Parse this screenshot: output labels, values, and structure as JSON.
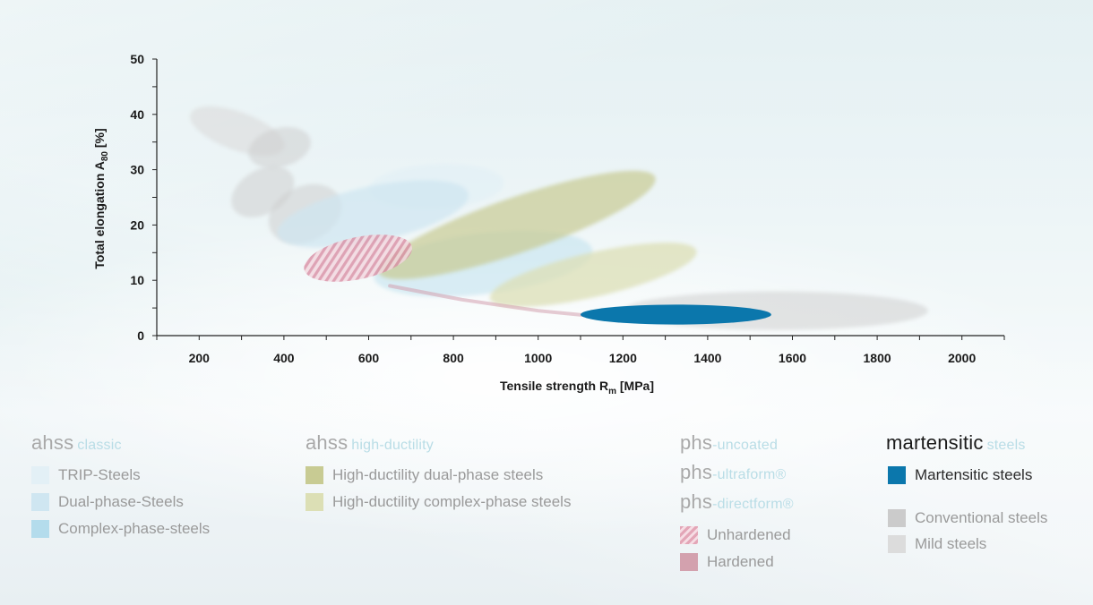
{
  "colors": {
    "trip": "#e3f0f6",
    "dual_phase": "#cfe6f1",
    "complex_phase": "#b4dcec",
    "hd_dual_phase": "#c8cb93",
    "hd_complex_phase": "#dcdfb5",
    "unhardened": "#e3a6b7",
    "hardened": "#d3a1ae",
    "martensitic": "#0b77ac",
    "conventional": "#cbcbcb",
    "mild": "#dcdcdc",
    "axis": "#222222",
    "heading_sub": "#b9dde6"
  },
  "chart_data": {
    "type": "scatter",
    "xlabel": "Tensile strength R",
    "xlabel_sub": "m",
    "xlabel_unit": " [MPa]",
    "ylabel": "Total elongation A",
    "ylabel_sub": "80",
    "ylabel_unit": " [%]",
    "xlim": [
      100,
      2100
    ],
    "ylim": [
      0,
      50
    ],
    "x_ticks": [
      200,
      400,
      600,
      800,
      1000,
      1200,
      1400,
      1600,
      1800,
      2000
    ],
    "y_ticks": [
      0,
      10,
      20,
      30,
      40,
      50
    ],
    "series": [
      {
        "name": "Mild steels",
        "color": "#dadada",
        "opacity": 0.6,
        "regions": [
          {
            "x": 290,
            "y": 37,
            "rx": 45,
            "ry": 9,
            "angle": -70
          }
        ]
      },
      {
        "name": "Conventional steels",
        "color": "#cbcbcb",
        "opacity": 0.5,
        "regions": [
          {
            "x": 390,
            "y": 34,
            "rx": 75,
            "ry": 3.5,
            "angle": -15
          },
          {
            "x": 350,
            "y": 26,
            "rx": 80,
            "ry": 4,
            "angle": -30
          },
          {
            "x": 450,
            "y": 22,
            "rx": 90,
            "ry": 5,
            "angle": -25
          },
          {
            "x": 1560,
            "y": 4.5,
            "rx": 360,
            "ry": 3.5,
            "angle": 0
          }
        ]
      },
      {
        "name": "TRIP-Steels",
        "color": "#e3f0f6",
        "opacity": 0.75,
        "regions": [
          {
            "x": 760,
            "y": 27,
            "rx": 160,
            "ry": 4,
            "angle": -3
          }
        ]
      },
      {
        "name": "Dual-phase-Steels",
        "color": "#cfe6f1",
        "opacity": 0.7,
        "regions": [
          {
            "x": 610,
            "y": 22,
            "rx": 230,
            "ry": 5,
            "angle": -12
          }
        ]
      },
      {
        "name": "Complex-phase-steels",
        "color": "#b4dcec",
        "opacity": 0.45,
        "regions": [
          {
            "x": 870,
            "y": 13,
            "rx": 260,
            "ry": 5.5,
            "angle": -7
          }
        ]
      },
      {
        "name": "High-ductility dual-phase steels",
        "color": "#c8cb93",
        "opacity": 0.7,
        "regions": [
          {
            "x": 950,
            "y": 20,
            "rx": 345,
            "ry": 5,
            "angle": -19
          }
        ]
      },
      {
        "name": "High-ductility complex-phase steels",
        "color": "#dcdfb5",
        "opacity": 0.75,
        "regions": [
          {
            "x": 1130,
            "y": 11,
            "rx": 250,
            "ry": 4,
            "angle": -13
          }
        ]
      },
      {
        "name": "Unhardened",
        "color": "#e3a6b7",
        "opacity": 0.8,
        "hatched": true,
        "regions": [
          {
            "x": 575,
            "y": 14,
            "rx": 130,
            "ry": 3.8,
            "angle": -12
          }
        ]
      },
      {
        "name": "Hardened",
        "color": "#d3a1ae",
        "opacity": 0.55,
        "path": [
          [
            650,
            9
          ],
          [
            820,
            6.5
          ],
          [
            1000,
            4.5
          ],
          [
            1200,
            3
          ],
          [
            1300,
            2.5
          ]
        ]
      },
      {
        "name": "Martensitic steels",
        "color": "#0b77ac",
        "opacity": 1.0,
        "regions": [
          {
            "x": 1325,
            "y": 3.8,
            "rx": 225,
            "ry": 1.8,
            "angle": 0
          }
        ]
      }
    ]
  },
  "legend": {
    "groups": [
      {
        "heading": "ahss",
        "subheading": "classic",
        "dark": false,
        "items": [
          {
            "label": "TRIP-Steels",
            "color": "#e3f0f6",
            "dark": false
          },
          {
            "label": "Dual-phase-Steels",
            "color": "#cfe6f1",
            "dark": false
          },
          {
            "label": "Complex-phase-steels",
            "color": "#b4dcec",
            "dark": false
          }
        ]
      },
      {
        "heading": "ahss",
        "subheading": "high-ductility",
        "dark": false,
        "items": [
          {
            "label": "High-ductility dual-phase steels",
            "color": "#c8cb93",
            "dark": false
          },
          {
            "label": "High-ductility complex-phase steels",
            "color": "#dcdfb5",
            "dark": false
          }
        ]
      },
      {
        "headings": [
          {
            "heading": "phs",
            "subheading": "-uncoated"
          },
          {
            "heading": "phs",
            "subheading": "-ultraform®"
          },
          {
            "heading": "phs",
            "subheading": "-directform®"
          }
        ],
        "items": [
          {
            "label": "Unhardened",
            "color": "#e3a6b7",
            "hatched": true,
            "dark": false
          },
          {
            "label": "Hardened",
            "color": "#d3a1ae",
            "dark": false
          }
        ]
      },
      {
        "heading": "martensitic",
        "subheading": "steels",
        "dark": true,
        "items": [
          {
            "label": "Martensitic steels",
            "color": "#0b77ac",
            "dark": true
          },
          {
            "label": "Conventional steels",
            "color": "#cbcbcb",
            "dark": false
          },
          {
            "label": "Mild steels",
            "color": "#dcdcdc",
            "dark": false
          }
        ]
      }
    ]
  }
}
